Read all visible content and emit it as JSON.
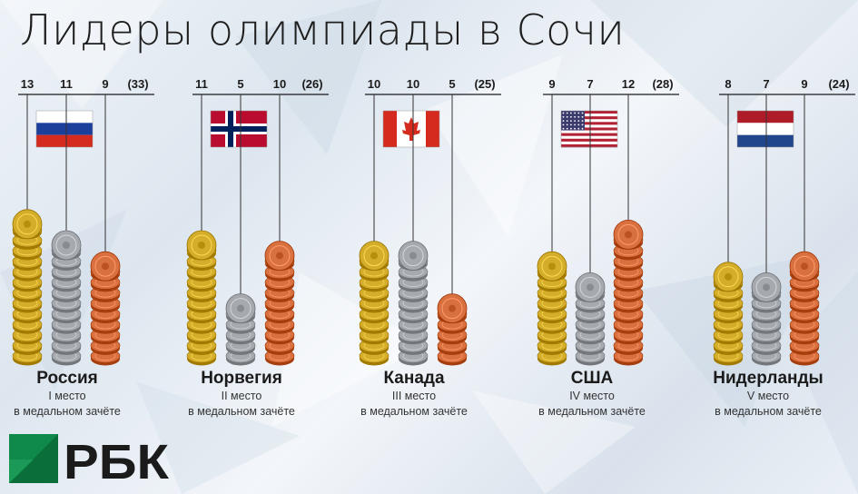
{
  "title": "Лидеры олимпиады в Сочи",
  "colors": {
    "gold": "#d4ad2a",
    "silver": "#a6a9ae",
    "bronze": "#d9703f",
    "logo_green": "#0f8a4a",
    "logo_text": "#1b1b1b"
  },
  "chart_data": {
    "type": "bar",
    "title": "Лидеры олимпиады в Сочи",
    "categories": [
      "Россия",
      "Норвегия",
      "Канада",
      "США",
      "Нидерланды"
    ],
    "series": [
      {
        "values": [
          13,
          11,
          10,
          9,
          8
        ]
      },
      {
        "values": [
          11,
          5,
          10,
          7,
          7
        ]
      },
      {
        "values": [
          9,
          10,
          5,
          12,
          9
        ]
      }
    ],
    "totals_labels": [
      "(33)",
      "(26)",
      "(25)",
      "(28)",
      "(24)"
    ],
    "ylim": [
      0,
      14
    ]
  },
  "countries": [
    {
      "name": "Россия",
      "place": "I место",
      "sub": "в медальном зачёте",
      "flag": "russia-flag"
    },
    {
      "name": "Норвегия",
      "place": "II место",
      "sub": "в медальном зачёте",
      "flag": "norway-flag"
    },
    {
      "name": "Канада",
      "place": "III место",
      "sub": "в медальном зачёте",
      "flag": "canada-flag"
    },
    {
      "name": "США",
      "place": "IV место",
      "sub": "в медальном зачёте",
      "flag": "usa-flag"
    },
    {
      "name": "Нидерланды",
      "place": "V место",
      "sub": "в медальном зачёте",
      "flag": "netherlands-flag"
    }
  ],
  "logo": {
    "text": "РБК",
    "icon": "rbc-logo-icon"
  }
}
